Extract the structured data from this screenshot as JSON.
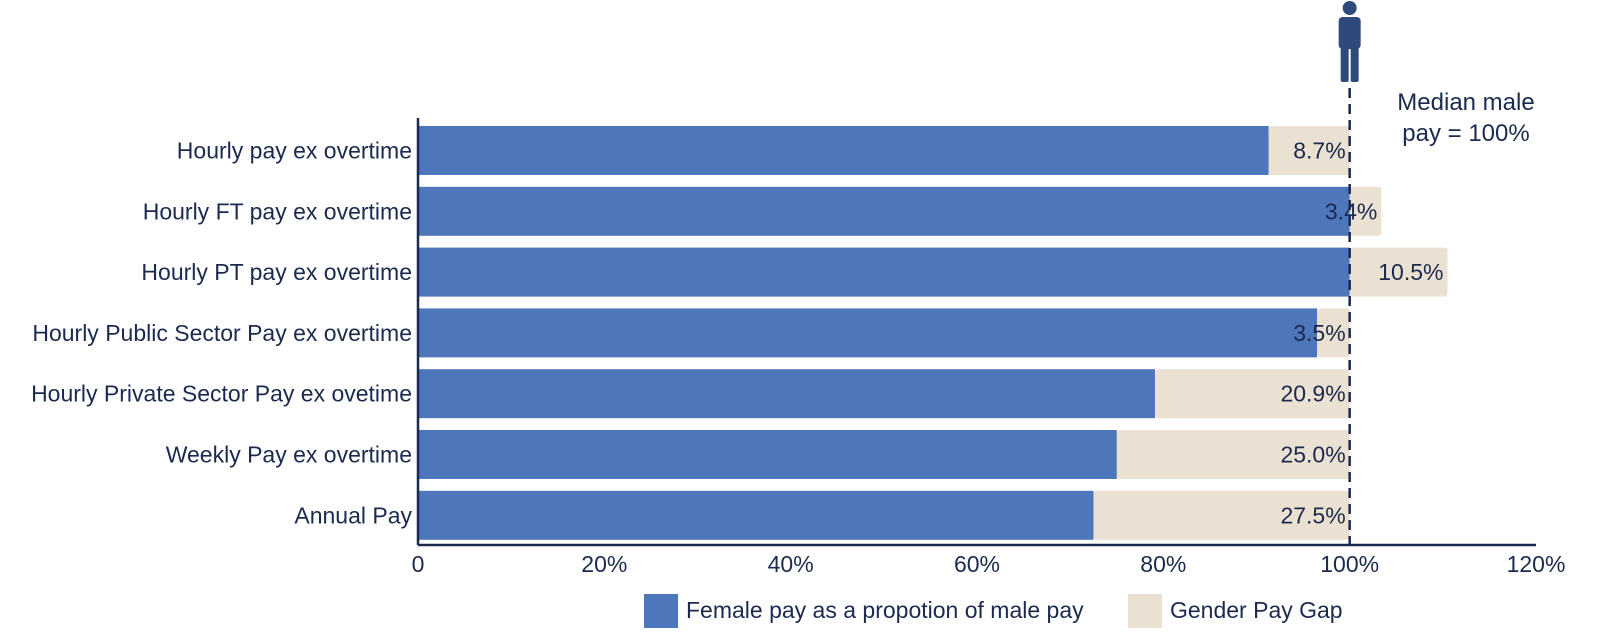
{
  "chart_data": {
    "type": "bar",
    "orientation": "horizontal",
    "stacked": true,
    "categories": [
      "Hourly pay ex overtime",
      "Hourly FT pay ex overtime",
      "Hourly PT pay ex overtime",
      "Hourly Public Sector Pay ex overtime",
      "Hourly Private Sector Pay ex ovetime",
      "Weekly Pay ex overtime",
      "Annual Pay"
    ],
    "series": [
      {
        "name": "Female pay as a propotion of male pay",
        "color": "#4e76ba",
        "values": [
          91.3,
          100,
          100,
          96.5,
          79.1,
          75.0,
          72.5
        ]
      },
      {
        "name": "Gender Pay Gap",
        "color": "#ebe1d2",
        "values": [
          8.7,
          3.4,
          10.5,
          3.5,
          20.9,
          25.0,
          27.5
        ]
      }
    ],
    "gap_labels": [
      "8.7%",
      "3.4%",
      "10.5%",
      "3.5%",
      "20.9%",
      "25.0%",
      "27.5%"
    ],
    "xlim": [
      0,
      120
    ],
    "xticks": [
      0,
      20,
      40,
      60,
      80,
      100,
      120
    ],
    "xtick_labels": [
      "0",
      "20%",
      "40%",
      "60%",
      "80%",
      "100%",
      "120%"
    ],
    "reference_line": {
      "value": 100,
      "label_lines": [
        "Median male",
        "pay = 100%"
      ],
      "icon": "male-person-icon",
      "color": "#1b2a4e"
    },
    "text_color": "#1b2a4e",
    "grid": false,
    "legend_position": "bottom"
  }
}
